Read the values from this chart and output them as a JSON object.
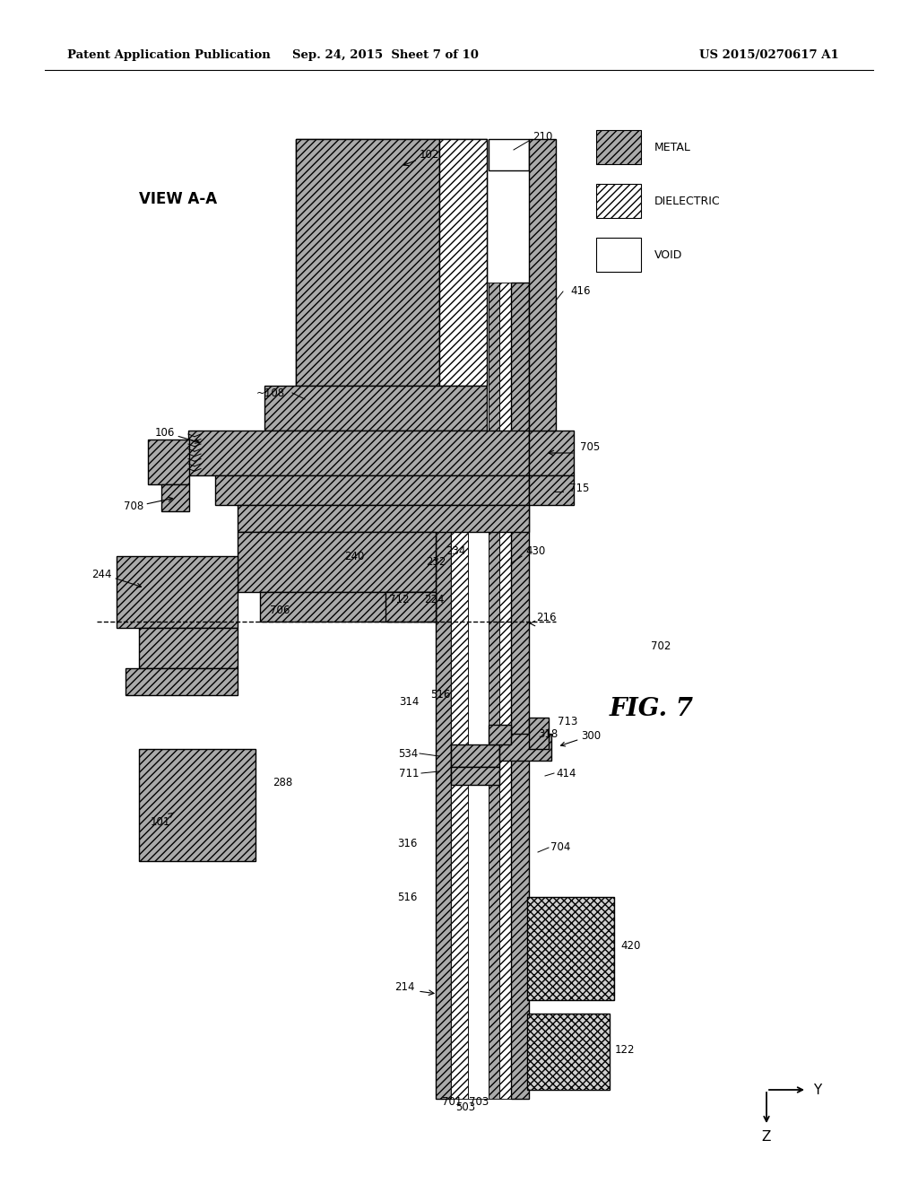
{
  "bg": "#ffffff",
  "header_left": "Patent Application Publication",
  "header_center": "Sep. 24, 2015  Sheet 7 of 10",
  "header_right": "US 2015/0270617 A1",
  "metal_fc": "#aaaaaa",
  "metal_hatch": "////",
  "diel_fc": "#ffffff",
  "diel_hatch": "////",
  "void_fc": "#ffffff",
  "cross_hatch": "xxxx",
  "lfs": 8.5
}
